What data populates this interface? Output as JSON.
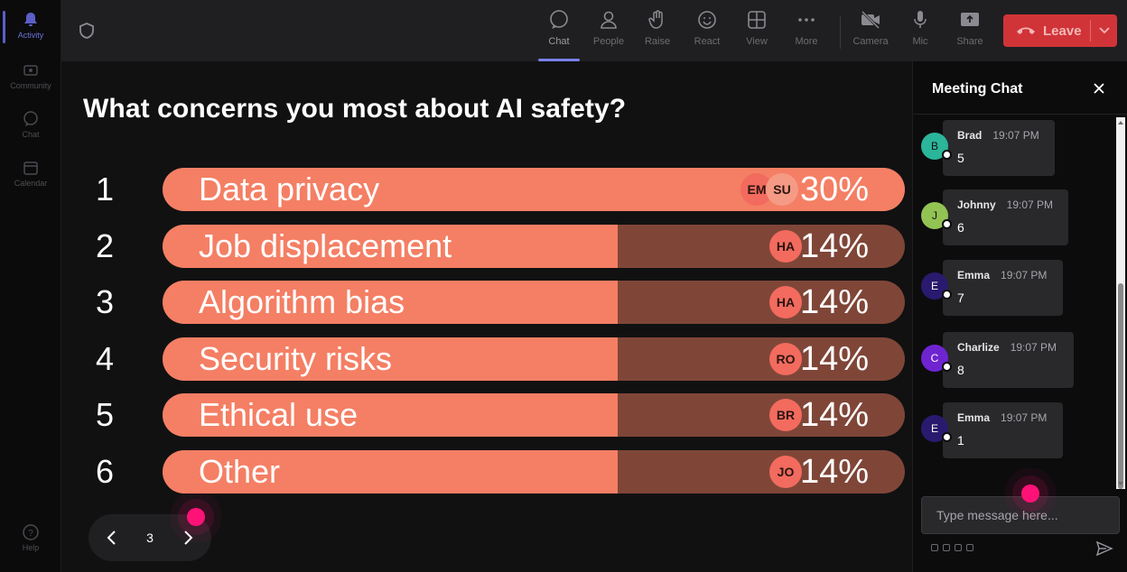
{
  "rail": {
    "items": [
      {
        "label": "Activity",
        "icon": "bell-icon",
        "active": true
      },
      {
        "label": "Community",
        "icon": "community-icon",
        "active": false
      },
      {
        "label": "Chat",
        "icon": "chat-icon",
        "active": false
      },
      {
        "label": "Calendar",
        "icon": "calendar-icon",
        "active": false
      }
    ],
    "help_label": "Help"
  },
  "toolbar": {
    "chat": "Chat",
    "people": "People",
    "raise": "Raise",
    "react": "React",
    "view": "View",
    "more": "More",
    "camera": "Camera",
    "mic": "Mic",
    "share": "Share",
    "leave": "Leave",
    "active": "Chat",
    "leave_color": "#d13438"
  },
  "poll": {
    "question": "What concerns you most about AI safety?",
    "options": [
      {
        "num": "1",
        "label": "Data privacy",
        "pct": "30%",
        "value": 30,
        "voters": [
          "EM",
          "SU"
        ]
      },
      {
        "num": "2",
        "label": "Job displacement",
        "pct": "14%",
        "value": 14,
        "voters": [
          "HA"
        ]
      },
      {
        "num": "3",
        "label": "Algorithm bias",
        "pct": "14%",
        "value": 14,
        "voters": [
          "HA"
        ]
      },
      {
        "num": "4",
        "label": "Security risks",
        "pct": "14%",
        "value": 14,
        "voters": [
          "RO"
        ]
      },
      {
        "num": "5",
        "label": "Ethical use",
        "pct": "14%",
        "value": 14,
        "voters": [
          "BR"
        ]
      },
      {
        "num": "6",
        "label": "Other",
        "pct": "14%",
        "value": 14,
        "voters": [
          "JO"
        ]
      }
    ],
    "fill_color": "#f47f64",
    "track_color": "#7f4638"
  },
  "pager": {
    "page": "3"
  },
  "chat": {
    "title": "Meeting Chat",
    "messages": [
      {
        "initial": "B",
        "author": "Brad",
        "time": "19:07 PM",
        "text": "5",
        "avatar_color": "#2bb59a"
      },
      {
        "initial": "J",
        "author": "Johnny",
        "time": "19:07 PM",
        "text": "6",
        "avatar_color": "#92c353"
      },
      {
        "initial": "E",
        "author": "Emma",
        "time": "19:07 PM",
        "text": "7",
        "avatar_color": "#2a1a6e"
      },
      {
        "initial": "C",
        "author": "Charlize",
        "time": "19:07 PM",
        "text": "8",
        "avatar_color": "#6f24d1"
      },
      {
        "initial": "E",
        "author": "Emma",
        "time": "19:07 PM",
        "text": "1",
        "avatar_color": "#2a1a6e"
      }
    ],
    "input_placeholder": "Type message here..."
  },
  "pointer_color": "#ff1277"
}
